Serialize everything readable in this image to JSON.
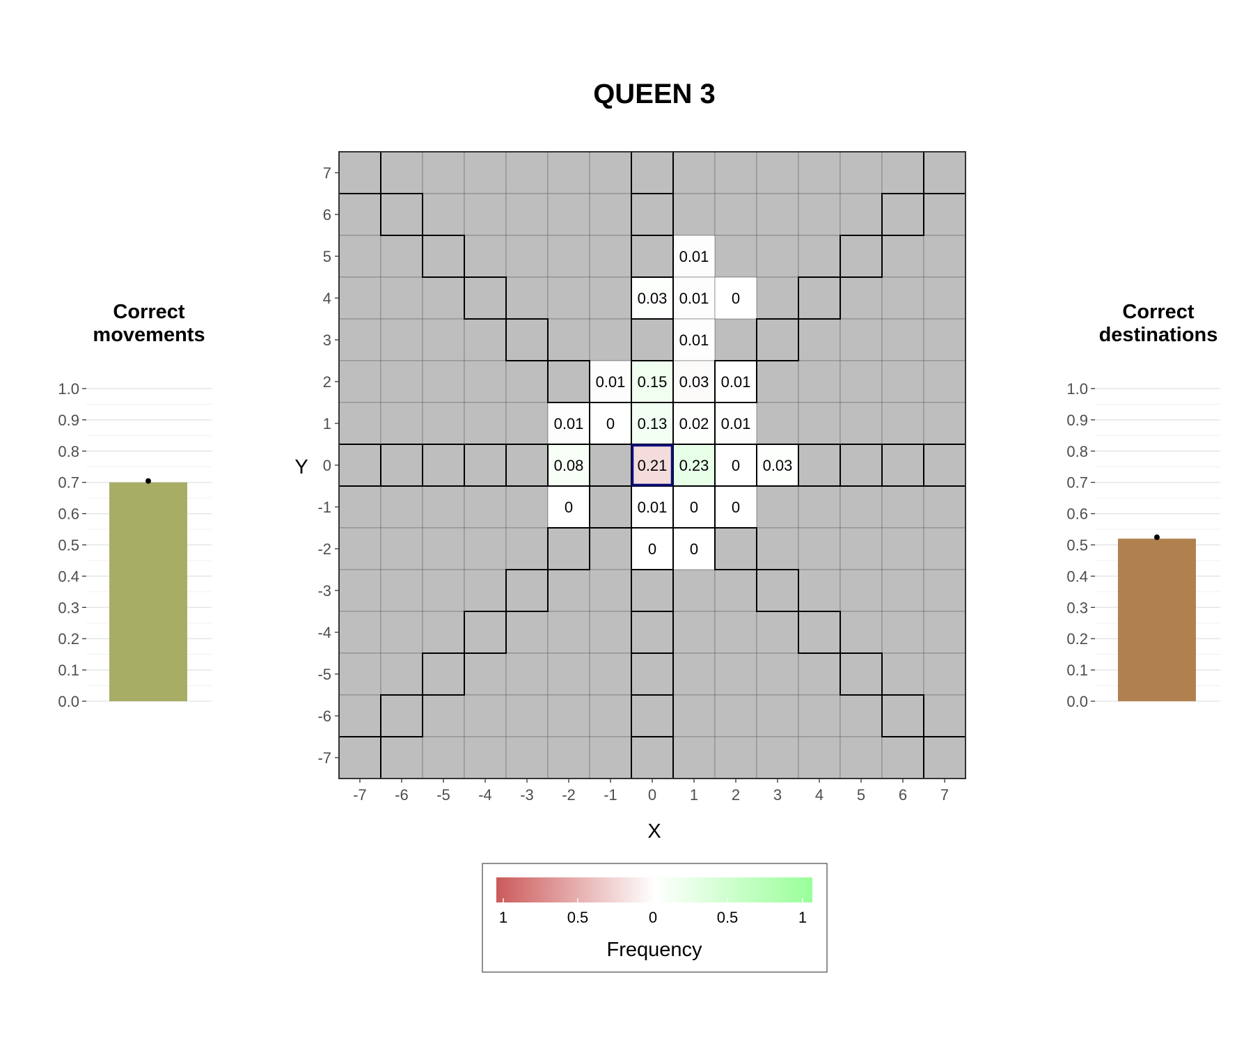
{
  "title": "QUEEN 3",
  "left_panel": {
    "title_line1": "Correct",
    "title_line2": "movements",
    "value": 0.7,
    "bar_color": "#a8ad66"
  },
  "right_panel": {
    "title_line1": "Correct",
    "title_line2": "destinations",
    "value": 0.52,
    "bar_color": "#b0814f"
  },
  "bar_ticks": [
    "0.0",
    "0.1",
    "0.2",
    "0.3",
    "0.4",
    "0.5",
    "0.6",
    "0.7",
    "0.8",
    "0.9",
    "1.0"
  ],
  "legend": {
    "title": "Frequency",
    "labels": [
      "1",
      "0.5",
      "0",
      "0.5",
      "1"
    ],
    "color_incorrect": "#cc5a5a",
    "color_mid": "#ffffff",
    "color_correct": "#99ff99"
  },
  "colors": {
    "cell_gray": "#bebebe",
    "origin_border": "#0d0d7a",
    "tile_border": "#000000"
  },
  "chart_data": {
    "type": "heatmap",
    "title": "QUEEN 3",
    "xlabel": "X",
    "ylabel": "Y",
    "x_ticks": [
      "-7",
      "-6",
      "-5",
      "-4",
      "-3",
      "-2",
      "-1",
      "0",
      "1",
      "2",
      "3",
      "4",
      "5",
      "6",
      "7"
    ],
    "y_ticks": [
      "7",
      "6",
      "5",
      "4",
      "3",
      "2",
      "1",
      "0",
      "-1",
      "-2",
      "-3",
      "-4",
      "-5",
      "-6",
      "-7"
    ],
    "xlim": [
      -7,
      7
    ],
    "ylim": [
      -7,
      7
    ],
    "origin": [
      0,
      0
    ],
    "legal_moves": "queen lines from origin (row, column, diagonals)",
    "cells": [
      {
        "x": 1,
        "y": 5,
        "label": "0.01",
        "freq": 0.01,
        "legal": false
      },
      {
        "x": 0,
        "y": 4,
        "label": "0.03",
        "freq": 0.03,
        "legal": true
      },
      {
        "x": 1,
        "y": 4,
        "label": "0.01",
        "freq": 0.01,
        "legal": false
      },
      {
        "x": 2,
        "y": 4,
        "label": "0",
        "freq": 0.0,
        "legal": false
      },
      {
        "x": 1,
        "y": 3,
        "label": "0.01",
        "freq": 0.01,
        "legal": false
      },
      {
        "x": -1,
        "y": 2,
        "label": "0.01",
        "freq": 0.01,
        "legal": false
      },
      {
        "x": 0,
        "y": 2,
        "label": "0.15",
        "freq": 0.15,
        "legal": true
      },
      {
        "x": 1,
        "y": 2,
        "label": "0.03",
        "freq": 0.03,
        "legal": false
      },
      {
        "x": 2,
        "y": 2,
        "label": "0.01",
        "freq": 0.01,
        "legal": true
      },
      {
        "x": -2,
        "y": 1,
        "label": "0.01",
        "freq": 0.01,
        "legal": false
      },
      {
        "x": -1,
        "y": 1,
        "label": "0",
        "freq": 0.0,
        "legal": true
      },
      {
        "x": 0,
        "y": 1,
        "label": "0.13",
        "freq": 0.13,
        "legal": true
      },
      {
        "x": 1,
        "y": 1,
        "label": "0.02",
        "freq": 0.02,
        "legal": true
      },
      {
        "x": 2,
        "y": 1,
        "label": "0.01",
        "freq": 0.01,
        "legal": false
      },
      {
        "x": -2,
        "y": 0,
        "label": "0.08",
        "freq": 0.08,
        "legal": true
      },
      {
        "x": 0,
        "y": 0,
        "label": "0.21",
        "freq": 0.21,
        "legal": false
      },
      {
        "x": 1,
        "y": 0,
        "label": "0.23",
        "freq": 0.23,
        "legal": true
      },
      {
        "x": 2,
        "y": 0,
        "label": "0",
        "freq": 0.0,
        "legal": true
      },
      {
        "x": 3,
        "y": 0,
        "label": "0.03",
        "freq": 0.03,
        "legal": true
      },
      {
        "x": -2,
        "y": -1,
        "label": "0",
        "freq": 0.0,
        "legal": false
      },
      {
        "x": 0,
        "y": -1,
        "label": "0.01",
        "freq": 0.01,
        "legal": true
      },
      {
        "x": 1,
        "y": -1,
        "label": "0",
        "freq": 0.0,
        "legal": true
      },
      {
        "x": 2,
        "y": -1,
        "label": "0",
        "freq": 0.0,
        "legal": false
      },
      {
        "x": 0,
        "y": -2,
        "label": "0",
        "freq": 0.0,
        "legal": true
      },
      {
        "x": 1,
        "y": -2,
        "label": "0",
        "freq": 0.0,
        "legal": false
      }
    ]
  }
}
